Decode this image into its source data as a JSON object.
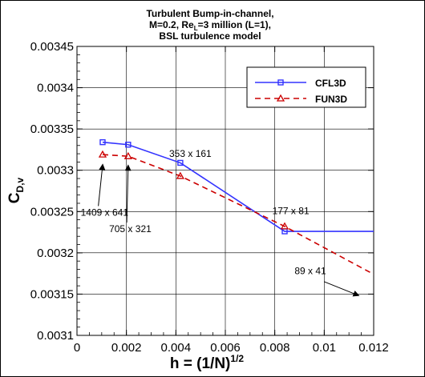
{
  "chart_data": {
    "type": "line",
    "title": [
      "Turbulent Bump-in-channel,",
      "M=0.2, Re",
      "L",
      "=3 million (L=1),",
      "BSL turbulence model"
    ],
    "xlabel": {
      "main": "h = (1/N)",
      "sup": "1/2"
    },
    "ylabel": {
      "main": "C",
      "sub": "D,v"
    },
    "xlim": [
      0,
      0.012
    ],
    "ylim": [
      0.0031,
      0.00345
    ],
    "xticks": [
      0,
      0.002,
      0.004,
      0.006,
      0.008,
      0.01,
      0.012
    ],
    "xtick_labels": [
      "0",
      "0.002",
      "0.004",
      "0.006",
      "0.008",
      "0.01",
      "0.012"
    ],
    "yticks": [
      0.0031,
      0.00315,
      0.0032,
      0.00325,
      0.0033,
      0.00335,
      0.0034,
      0.00345
    ],
    "ytick_labels": [
      "0.0031",
      "0.00315",
      "0.0032",
      "0.00325",
      "0.0033",
      "0.00335",
      "0.0034",
      "0.00345"
    ],
    "grid": true,
    "legend_position": "top-right",
    "series": [
      {
        "name": "CFL3D",
        "color": "#3333ff",
        "line": "solid",
        "marker": "square",
        "x": [
          0.001037,
          0.00207,
          0.00418,
          0.0084
        ],
        "y": [
          0.003334,
          0.003331,
          0.003309,
          0.003226
        ],
        "extension": {
          "x": [
            0.0084,
            0.012
          ],
          "y": [
            0.003226,
            0.003226
          ]
        }
      },
      {
        "name": "FUN3D",
        "color": "#cc0000",
        "line": "dashed",
        "marker": "triangle",
        "x": [
          0.001037,
          0.00207,
          0.00418,
          0.0084
        ],
        "y": [
          0.003319,
          0.003317,
          0.003293,
          0.003232
        ],
        "extension": {
          "x": [
            0.0084,
            0.012
          ],
          "y": [
            0.003232,
            0.003174
          ]
        }
      }
    ],
    "annotations": [
      {
        "text": "1409 x 641",
        "x": 0.00015,
        "y": 0.003245,
        "arrow_to": [
          0.00104,
          0.003313
        ]
      },
      {
        "text": "705 x 321",
        "x": 0.0013,
        "y": 0.003225,
        "arrow_to": [
          0.00207,
          0.003312
        ]
      },
      {
        "text": "353 x 161",
        "x": 0.00373,
        "y": 0.003316
      },
      {
        "text": "177 x 81",
        "x": 0.0079,
        "y": 0.003247
      },
      {
        "text": "89 x 41",
        "x": 0.0088,
        "y": 0.003174,
        "arrow_from": [
          0.01,
          0.003165
        ],
        "arrow_to": [
          0.0114,
          0.003154
        ]
      }
    ]
  }
}
